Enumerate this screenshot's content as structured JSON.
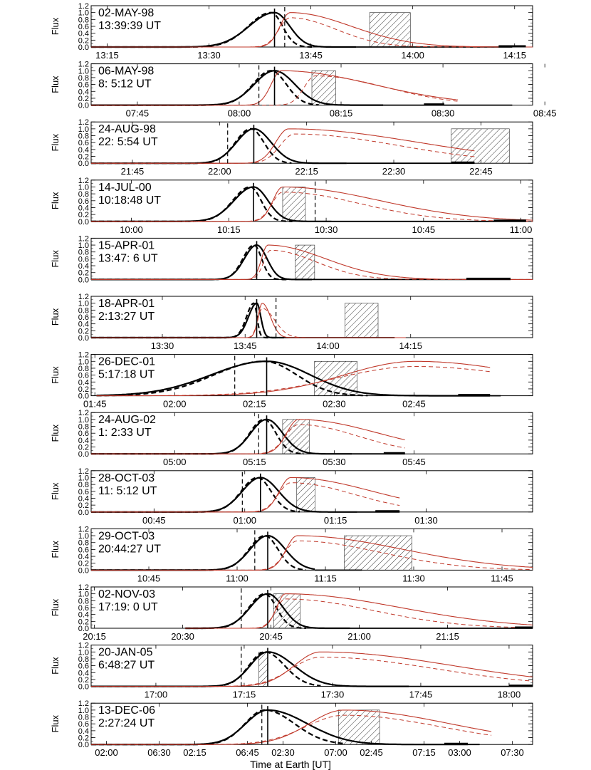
{
  "figure": {
    "ylabel": "Flux",
    "xlabel": "Time at Earth [UT]"
  },
  "chart_data": [
    {
      "type": "line",
      "date": "02-MAY-98",
      "time_ut": "13:39:39 UT",
      "ytick_labels": [
        "1.2",
        "1.0",
        "0.8",
        "0.6",
        "0.4",
        "0.2",
        "0.0"
      ],
      "ylim": [
        0,
        1.2
      ],
      "xtick_labels": [
        "13:15",
        "13:30",
        "13:45",
        "14:00",
        "14:15"
      ],
      "xlim_minutes": [
        -27,
        38
      ],
      "xticks_minutes": [
        -24.65,
        -9.65,
        5.35,
        20.35,
        35.35
      ],
      "peak_minute": 0,
      "dashed_marker_minute": 1.5,
      "hatched_window_minutes": [
        14,
        20
      ],
      "bar_minutes": [
        33,
        37
      ],
      "black_start_minute": -27,
      "black_end_minute": 35,
      "black_rise": 5,
      "black_fall": 3,
      "black_dashed_end_minute": 3.5,
      "red_peak_minute": 2.3,
      "red_rise": 2,
      "red_fall": 12,
      "red_end_minute": 38,
      "red_dashed_peak_minute": 2.3,
      "red_dashed_fall": 9
    },
    {
      "type": "line",
      "date": "06-MAY-98",
      "time_ut": "8: 5:12 UT",
      "ytick_labels": [
        "1.2",
        "1.0",
        "0.8",
        "0.6",
        "0.4",
        "0.2",
        "0.0"
      ],
      "ylim": [
        0,
        1.2
      ],
      "xtick_labels": [
        "07:45",
        "08:00",
        "08:15",
        "08:30",
        "08:45"
      ],
      "xlim_minutes": [
        -27,
        38
      ],
      "xticks_minutes": [
        -20.2,
        -5.2,
        9.8,
        24.8,
        39.8
      ],
      "peak_minute": 0,
      "dashed_marker_minute": -2.3,
      "hatched_window_minutes": [
        5.5,
        9
      ],
      "bar_minutes": [
        22,
        25
      ],
      "black_start_minute": -27,
      "black_end_minute": 35,
      "black_rise": 4,
      "black_fall": 4,
      "black_dashed_end_minute": 4.5,
      "red_peak_minute": 1,
      "red_rise": 2,
      "red_fall": 18,
      "red_end_minute": 27,
      "red_dashed_peak_minute": 6,
      "red_dashed_fall": 14
    },
    {
      "type": "line",
      "date": "24-AUG-98",
      "time_ut": "22: 5:54 UT",
      "ytick_labels": [
        "1.2",
        "1.0",
        "0.8",
        "0.6",
        "0.4",
        "0.2",
        "0.0"
      ],
      "ylim": [
        0,
        1.2
      ],
      "xtick_labels": [
        "21:45",
        "22:00",
        "22:15",
        "22:30",
        "22:45"
      ],
      "xlim_minutes": [
        -28,
        48
      ],
      "xticks_minutes": [
        -20.9,
        -5.9,
        9.1,
        24.1,
        39.1
      ],
      "peak_minute": 0,
      "dashed_marker_minute": -4.5,
      "hatched_window_minutes": [
        34,
        44
      ],
      "bar_minutes": [
        34,
        38
      ],
      "black_start_minute": -28,
      "black_end_minute": 38,
      "black_rise": 4,
      "black_fall": 4,
      "black_dashed_end_minute": 4.5,
      "red_peak_minute": 6,
      "red_rise": 3,
      "red_fall": 30,
      "red_end_minute": 38,
      "red_dashed_peak_minute": 7,
      "red_dashed_fall": 24
    },
    {
      "type": "line",
      "date": "14-JUL-00",
      "time_ut": "10:18:48 UT",
      "ytick_labels": [
        "1.2",
        "1.0",
        "0.8",
        "0.6",
        "0.4",
        "0.2",
        "0.0"
      ],
      "ylim": [
        0,
        1.2
      ],
      "xtick_labels": [
        "10:00",
        "10:15",
        "10:30",
        "10:45",
        "11:00"
      ],
      "xlim_minutes": [
        -25,
        43
      ],
      "xticks_minutes": [
        -18.8,
        -3.8,
        11.2,
        26.2,
        41.2
      ],
      "peak_minute": 0,
      "dashed_marker_minute": 9.5,
      "hatched_window_minutes": [
        4.5,
        8
      ],
      "bar_minutes": [
        37,
        42
      ],
      "black_start_minute": -25,
      "black_end_minute": 42,
      "black_rise": 4,
      "black_fall": 3,
      "black_dashed_end_minute": 4,
      "red_peak_minute": 4.5,
      "red_rise": 2,
      "red_fall": 20,
      "red_end_minute": 43,
      "red_dashed_peak_minute": 4.5,
      "red_dashed_fall": 16
    },
    {
      "type": "line",
      "date": "15-APR-01",
      "time_ut": "13:47: 6 UT",
      "ytick_labels": [
        "1.2",
        "1.0",
        "0.8",
        "0.6",
        "0.4",
        "0.2",
        "0.0"
      ],
      "ylim": [
        0,
        1.2
      ],
      "xtick_labels": [],
      "xlim_minutes": [
        -30,
        50
      ],
      "xticks_minutes": [],
      "peak_minute": 0,
      "dashed_marker_minute": null,
      "hatched_window_minutes": [
        7,
        10.5
      ],
      "bar_minutes": [
        38,
        46
      ],
      "black_start_minute": -30,
      "black_end_minute": 46,
      "black_rise": 3,
      "black_fall": 2.5,
      "black_dashed_end_minute": 3.5,
      "red_peak_minute": 2,
      "red_rise": 1.5,
      "red_fall": 14,
      "red_end_minute": 50,
      "red_dashed_peak_minute": 2.5,
      "red_dashed_fall": 11
    },
    {
      "type": "line",
      "date": "18-APR-01",
      "time_ut": "2:13:27 UT",
      "ytick_labels": [
        "1.2",
        "1.0",
        "0.8",
        "0.6",
        "0.4",
        "0.2",
        "0.0"
      ],
      "ylim": [
        0,
        1.2
      ],
      "xtick_labels": [
        "13:30",
        "13:45",
        "14:00",
        "14:15"
      ],
      "xlim_minutes": [
        -30,
        50
      ],
      "xticks_minutes": [
        -17.1,
        -2.1,
        12.9,
        27.9
      ],
      "peak_minute": 0,
      "dashed_marker_minute": 3.5,
      "hatched_window_minutes": [
        16,
        22
      ],
      "bar_minutes": [],
      "black_start_minute": -30,
      "black_end_minute": 25,
      "black_rise": 2,
      "black_fall": 1,
      "black_dashed_end_minute": 3,
      "red_peak_minute": 1,
      "red_rise": 1,
      "red_fall": 2,
      "red_end_minute": 27,
      "red_dashed_peak_minute": 1,
      "red_dashed_fall": 3
    },
    {
      "type": "line",
      "date": "26-DEC-01",
      "time_ut": "5:17:18 UT",
      "ytick_labels": [
        "1.2",
        "1.0",
        "0.8",
        "0.6",
        "0.4",
        "0.2",
        "0.0"
      ],
      "ylim": [
        0,
        1.2
      ],
      "xtick_labels": [
        "01:45",
        "02:00",
        "02:15",
        "02:30",
        "02:45"
      ],
      "xlim_minutes": [
        -33,
        50
      ],
      "xticks_minutes": [
        -32.3,
        -17.3,
        -2.3,
        12.7,
        27.7
      ],
      "peak_minute": 0,
      "dashed_marker_minute": -6,
      "hatched_window_minutes": [
        9,
        17
      ],
      "bar_minutes": [
        36,
        42
      ],
      "black_start_minute": -32,
      "black_end_minute": 42,
      "black_rise": 14,
      "black_fall": 11,
      "black_dashed_end_minute": 17,
      "red_peak_minute": 28,
      "red_rise": 18,
      "red_fall": 30,
      "red_end_minute": 42,
      "red_dashed_peak_minute": 28,
      "red_dashed_fall": 30
    },
    {
      "type": "line",
      "date": "24-AUG-02",
      "time_ut": "1: 2:33 UT",
      "ytick_labels": [
        "1.2",
        "1.0",
        "0.8",
        "0.6",
        "0.4",
        "0.2",
        "0.0"
      ],
      "ylim": [
        0,
        1.2
      ],
      "xtick_labels": [
        "05:00",
        "05:15",
        "05:30",
        "05:45"
      ],
      "xlim_minutes": [
        -33,
        50
      ],
      "xticks_minutes": [
        -17.3,
        -2.3,
        12.7,
        27.7
      ],
      "peak_minute": 0,
      "dashed_marker_minute": -1.5,
      "hatched_window_minutes": [
        3,
        8
      ],
      "bar_minutes": [
        22,
        26
      ],
      "black_start_minute": -33,
      "black_end_minute": 26,
      "black_rise": 4,
      "black_fall": 4,
      "black_dashed_end_minute": 5,
      "red_peak_minute": 6,
      "red_rise": 3,
      "red_fall": 20,
      "red_end_minute": 26,
      "red_dashed_peak_minute": 6,
      "red_dashed_fall": 15
    },
    {
      "type": "line",
      "date": "28-OCT-03",
      "time_ut": "11: 5:12 UT",
      "ytick_labels": [
        "1.2",
        "1.0",
        "0.8",
        "0.6",
        "0.4",
        "0.2",
        "0.0"
      ],
      "ylim": [
        0,
        1.2
      ],
      "xtick_labels": [
        "00:45",
        "01:00",
        "01:15",
        "01:30"
      ],
      "xlim_minutes": [
        -28,
        45
      ],
      "xticks_minutes": [
        -17.6,
        -2.6,
        12.4,
        27.4
      ],
      "peak_minute": 0,
      "dashed_marker_minute": -3,
      "hatched_window_minutes": [
        6,
        9
      ],
      "bar_minutes": [
        19,
        23
      ],
      "black_start_minute": -28,
      "black_end_minute": 23,
      "black_rise": 4,
      "black_fall": 4,
      "black_dashed_end_minute": 4.5,
      "red_peak_minute": 5,
      "red_rise": 2.5,
      "red_fall": 18,
      "red_end_minute": 23,
      "red_dashed_peak_minute": 5,
      "red_dashed_fall": 14
    },
    {
      "type": "line",
      "date": "29-OCT-03",
      "time_ut": "20:44:27 UT",
      "ytick_labels": [
        "1.2",
        "1.0",
        "0.8",
        "0.6",
        "0.4",
        "0.2",
        "0.0"
      ],
      "ylim": [
        0,
        1.2
      ],
      "xtick_labels": [
        "10:45",
        "11:00",
        "11:15",
        "11:30",
        "11:45"
      ],
      "xlim_minutes": [
        -30,
        45
      ],
      "xticks_minutes": [
        -20.2,
        -5.2,
        9.8,
        24.8,
        39.8
      ],
      "peak_minute": 0,
      "dashed_marker_minute": -2.2,
      "hatched_window_minutes": [
        13,
        24.5
      ],
      "bar_minutes": [],
      "black_start_minute": -30,
      "black_end_minute": 8,
      "black_rise": 4,
      "black_fall": 4,
      "black_dashed_end_minute": 4.5,
      "red_peak_minute": 5,
      "red_rise": 2.5,
      "red_fall": 24,
      "red_end_minute": 45,
      "red_dashed_peak_minute": 5,
      "red_dashed_fall": 19
    },
    {
      "type": "line",
      "date": "02-NOV-03",
      "time_ut": "17:19: 0 UT",
      "ytick_labels": [
        "1.2",
        "1.0",
        "0.8",
        "0.6",
        "0.4",
        "0.2",
        "0.0"
      ],
      "ylim": [
        0,
        1.2
      ],
      "xtick_labels": [
        "20:15",
        "20:30",
        "20:45",
        "21:00",
        "21:15"
      ],
      "xlim_minutes": [
        -30,
        45
      ],
      "xticks_minutes": [
        -29.45,
        -14.45,
        0.55,
        15.55,
        30.55
      ],
      "peak_minute": 0,
      "dashed_marker_minute": -4.5,
      "hatched_window_minutes": [
        1,
        5.5
      ],
      "bar_minutes": [
        42,
        45
      ],
      "black_start_minute": -14,
      "black_end_minute": 45,
      "black_rise": 4,
      "black_fall": 3.5,
      "black_dashed_end_minute": 4.5,
      "red_peak_minute": 3,
      "red_rise": 2,
      "red_fall": 26,
      "red_end_minute": 45,
      "red_dashed_peak_minute": 3,
      "red_dashed_fall": 20
    },
    {
      "type": "line",
      "date": "20-JAN-05",
      "time_ut": "6:48:27 UT",
      "ytick_labels": [
        "1.2",
        "1.0",
        "0.8",
        "0.6",
        "0.4",
        "0.2",
        "0.0"
      ],
      "ylim": [
        0,
        1.2
      ],
      "xtick_labels": [
        "17:00",
        "17:15",
        "17:30",
        "17:45",
        "18:00"
      ],
      "xlim_minutes": [
        -30,
        45
      ],
      "xticks_minutes": [
        -19,
        -4,
        11,
        26,
        41
      ],
      "peak_minute": 0,
      "dashed_marker_minute": -4.5,
      "hatched_window_minutes": [
        -1.5,
        0
      ],
      "bar_minutes": [
        41,
        45
      ],
      "black_start_minute": -30,
      "black_end_minute": 45,
      "black_rise": 4,
      "black_fall": 6,
      "black_dashed_end_minute": 7,
      "red_peak_minute": 9,
      "red_rise": 6,
      "red_fall": 30,
      "red_end_minute": 45,
      "red_dashed_peak_minute": 9,
      "red_dashed_fall": 26
    },
    {
      "type": "line",
      "date": "13-DEC-06",
      "time_ut": "2:27:24 UT",
      "ytick_labels": [
        "1.2",
        "1.0",
        "0.8",
        "0.6",
        "0.4",
        "0.2",
        "0.0"
      ],
      "ylim": [
        0,
        1.2
      ],
      "xtick_labels": [
        "06:30",
        "06:45",
        "07:00",
        "07:15",
        "07:30"
      ],
      "xlim_minutes": [
        -30,
        45
      ],
      "xticks_minutes": [
        -18.45,
        -3.45,
        11.55,
        26.55,
        41.55
      ],
      "peak_minute": 0,
      "dashed_marker_minute": -1,
      "hatched_window_minutes": [
        12,
        19
      ],
      "bar_minutes": [
        30,
        34
      ],
      "black_start_minute": -30,
      "black_end_minute": 34,
      "black_rise": 5,
      "black_fall": 9,
      "black_dashed_end_minute": 11,
      "red_peak_minute": 13,
      "red_rise": 8,
      "red_fall": 24,
      "red_end_minute": 38,
      "red_dashed_peak_minute": 13,
      "red_dashed_fall": 22
    },
    {
      "type": "line",
      "role": "bottom-axis",
      "xtick_labels": [
        "02:00",
        "02:15",
        "02:30",
        "02:45",
        "03:00"
      ],
      "xlim_minutes": [
        -30,
        45
      ],
      "xticks_minutes": [
        -27.4,
        -12.4,
        2.6,
        17.6,
        32.6
      ]
    }
  ],
  "colors": {
    "black_curve": "#000000",
    "red_curve": "#c0392b",
    "hatch": "#000000",
    "background": "#ffffff"
  }
}
